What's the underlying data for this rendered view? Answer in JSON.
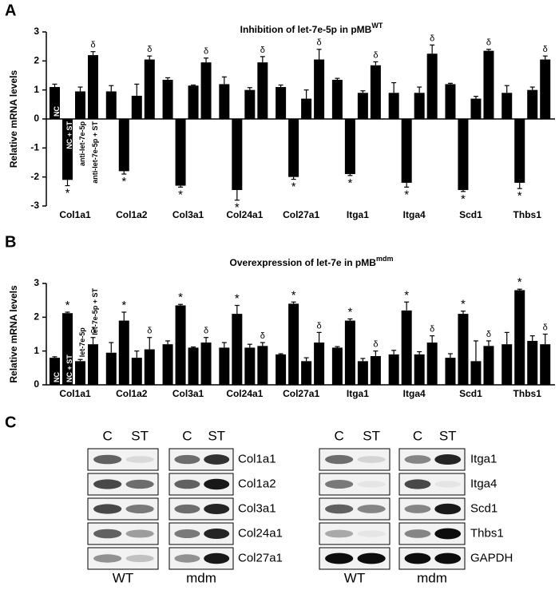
{
  "chart_data": [
    {
      "type": "bar",
      "panel_label": "A",
      "title": "Inhibition of let-7e-5p in pMB",
      "title_superscript": "WT",
      "y_label": "Relative mRNA levels",
      "categories": [
        "Col1a1",
        "Col1a2",
        "Col3a1",
        "Col24a1",
        "Col27a1",
        "Itga1",
        "Itga4",
        "Scd1",
        "Thbs1"
      ],
      "ylim": [
        -3,
        3
      ],
      "yticks": [
        -3,
        -2,
        -1,
        0,
        1,
        2,
        3
      ],
      "series": [
        {
          "name": "NC",
          "color": "#000000",
          "values": [
            1.1,
            0.95,
            1.35,
            1.2,
            1.1,
            1.35,
            0.9,
            1.2,
            0.9
          ],
          "errors": [
            0.1,
            0.2,
            0.07,
            0.25,
            0.07,
            0.05,
            0.35,
            0.03,
            0.25
          ]
        },
        {
          "name": "NC + ST",
          "color": "#000000",
          "values": [
            -2.1,
            -1.8,
            -2.3,
            -2.45,
            -2.0,
            -1.9,
            -2.2,
            -2.45,
            -2.2
          ],
          "errors": [
            0.2,
            0.1,
            0.05,
            0.35,
            0.08,
            0.05,
            0.15,
            0.05,
            0.2
          ],
          "annotation": "*"
        },
        {
          "name": "anti-let-7e-5p",
          "color": "#000000",
          "values": [
            0.95,
            0.8,
            1.15,
            1.0,
            0.7,
            0.9,
            0.9,
            0.7,
            1.0
          ],
          "errors": [
            0.15,
            0.4,
            0.02,
            0.08,
            0.3,
            0.07,
            0.2,
            0.08,
            0.1
          ]
        },
        {
          "name": "anti-let-7e-5p + ST",
          "color": "#000000",
          "values": [
            2.2,
            2.05,
            1.95,
            1.95,
            2.05,
            1.85,
            2.25,
            2.35,
            2.05
          ],
          "errors": [
            0.12,
            0.12,
            0.15,
            0.2,
            0.35,
            0.12,
            0.3,
            0.05,
            0.12
          ],
          "annotation": "δ"
        }
      ]
    },
    {
      "type": "bar",
      "panel_label": "B",
      "title": "Overexpression of let-7e in pMB",
      "title_superscript": "mdm",
      "y_label": "Relative mRNA levels",
      "categories": [
        "Col1a1",
        "Col1a2",
        "Col3a1",
        "Col24a1",
        "Col27a1",
        "Itga1",
        "Itga4",
        "Scd1",
        "Thbs1"
      ],
      "ylim": [
        0,
        3
      ],
      "yticks": [
        0,
        1,
        2,
        3
      ],
      "series": [
        {
          "name": "NC",
          "color": "#000000",
          "values": [
            0.8,
            0.95,
            1.2,
            1.1,
            0.9,
            1.1,
            0.9,
            0.8,
            1.2
          ],
          "errors": [
            0.03,
            0.3,
            0.1,
            0.15,
            0.02,
            0.03,
            0.12,
            0.12,
            0.35
          ]
        },
        {
          "name": "NC + ST",
          "color": "#000000",
          "values": [
            2.12,
            1.9,
            2.35,
            2.1,
            2.4,
            1.9,
            2.2,
            2.1,
            2.8
          ],
          "errors": [
            0.03,
            0.25,
            0.03,
            0.25,
            0.05,
            0.05,
            0.25,
            0.08,
            0.03
          ],
          "annotation": "*"
        },
        {
          "name": "let-7e-5p",
          "color": "#000000",
          "values": [
            0.7,
            0.8,
            1.1,
            1.1,
            0.7,
            0.7,
            0.9,
            0.7,
            1.3
          ],
          "errors": [
            0.05,
            0.2,
            0.02,
            0.1,
            0.1,
            0.08,
            0.08,
            0.6,
            0.15
          ]
        },
        {
          "name": "let-7e-5p + ST",
          "color": "#000000",
          "values": [
            1.2,
            1.05,
            1.25,
            1.15,
            1.25,
            0.85,
            1.25,
            1.15,
            1.2
          ],
          "errors": [
            0.2,
            0.35,
            0.15,
            0.1,
            0.3,
            0.15,
            0.2,
            0.15,
            0.3
          ],
          "annotation": "δ"
        }
      ]
    }
  ],
  "blots": {
    "panel_label": "C",
    "groups": [
      {
        "genotype": "WT",
        "lanes": [
          "C",
          "ST"
        ]
      },
      {
        "genotype": "mdm",
        "lanes": [
          "C",
          "ST"
        ]
      },
      {
        "genotype": "WT",
        "lanes": [
          "C",
          "ST"
        ]
      },
      {
        "genotype": "mdm",
        "lanes": [
          "C",
          "ST"
        ]
      }
    ],
    "left_proteins": [
      "Col1a1",
      "Col1a2",
      "Col3a1",
      "Col24a1",
      "Col27a1"
    ],
    "right_proteins": [
      "Itga1",
      "Itga4",
      "Scd1",
      "Thbs1",
      "GAPDH"
    ]
  }
}
